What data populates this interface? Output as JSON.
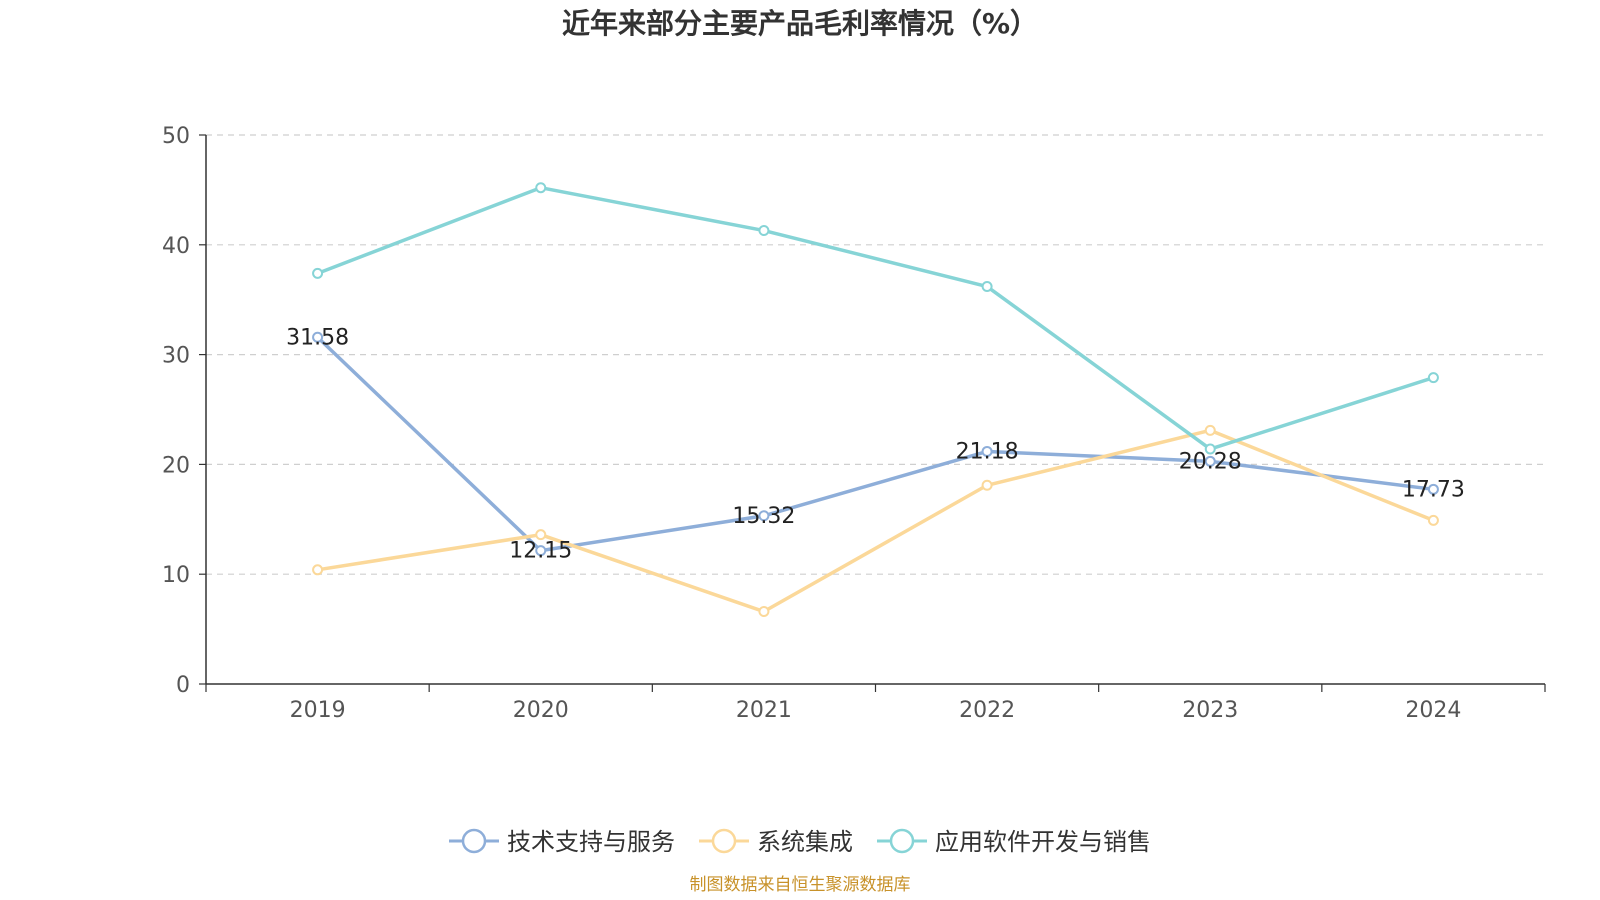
{
  "chart_data": {
    "type": "line",
    "title": "近年来部分主要产品毛利率情况（%）",
    "categories": [
      "2019",
      "2020",
      "2021",
      "2022",
      "2023",
      "2024"
    ],
    "ylim": [
      0,
      50
    ],
    "yticks": [
      0,
      10,
      20,
      30,
      40,
      50
    ],
    "grid": true,
    "legend_position": "bottom-center",
    "series": [
      {
        "name": "技术支持与服务",
        "color": "#8eaed9",
        "values": [
          31.58,
          12.15,
          15.32,
          21.18,
          20.28,
          17.73
        ],
        "labels": [
          "31.58",
          "12.15",
          "15.32",
          "21.18",
          "20.28",
          "17.73"
        ]
      },
      {
        "name": "系统集成",
        "color": "#fbd899",
        "values": [
          10.4,
          13.6,
          6.6,
          18.1,
          23.1,
          14.9
        ]
      },
      {
        "name": "应用软件开发与销售",
        "color": "#86d4d6",
        "values": [
          37.4,
          45.2,
          41.3,
          36.2,
          21.4,
          27.9
        ]
      }
    ],
    "source": "制图数据来自恒生聚源数据库",
    "source_color": "#c8922a"
  }
}
